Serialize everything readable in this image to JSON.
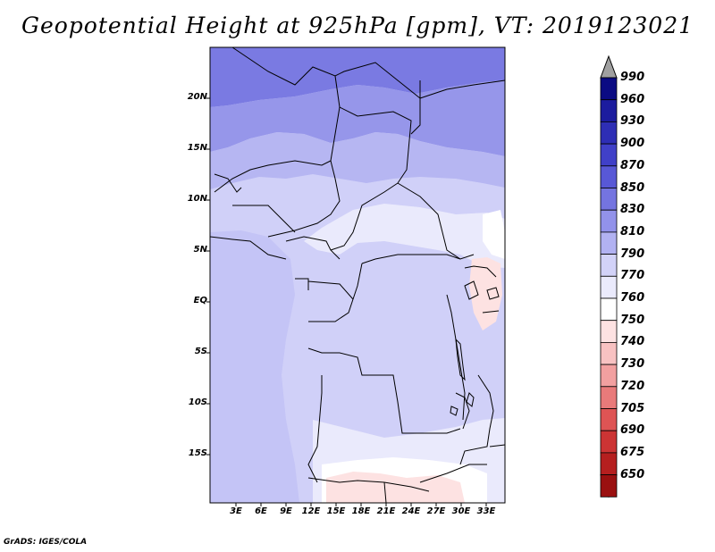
{
  "title": "Geopotential Height at 925hPa [gpm], VT: 2019123021",
  "credit": "GrADS: IGES/COLA",
  "map": {
    "lat_labels": [
      "20N",
      "15N",
      "10N",
      "5N",
      "EQ",
      "5S",
      "10S",
      "15S"
    ],
    "lon_labels": [
      "3E",
      "6E",
      "9E",
      "12E",
      "15E",
      "18E",
      "21E",
      "24E",
      "27E",
      "30E",
      "33E"
    ]
  },
  "colorbar": {
    "labels": [
      "990",
      "960",
      "930",
      "900",
      "870",
      "850",
      "830",
      "810",
      "790",
      "770",
      "760",
      "750",
      "740",
      "730",
      "720",
      "705",
      "690",
      "675",
      "650"
    ],
    "colors": [
      "#0b0b83",
      "#1c1c9e",
      "#2e2eb5",
      "#4040c8",
      "#5858d6",
      "#7474e0",
      "#9292ea",
      "#b2b2f2",
      "#d2d2f8",
      "#eaeafc",
      "#ffffff",
      "#fde2e2",
      "#f8c2c2",
      "#f2a0a0",
      "#e97a7a",
      "#de5454",
      "#cc3434",
      "#b51f1f",
      "#9a1010"
    ]
  }
}
